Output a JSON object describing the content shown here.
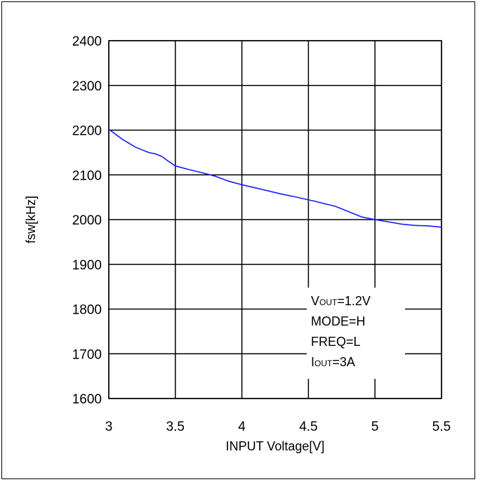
{
  "chart_data": {
    "type": "line",
    "xlabel": "INPUT Voltage[V]",
    "ylabel": "fsw[kHz]",
    "xlim": [
      3,
      5.5
    ],
    "ylim": [
      1600,
      2400
    ],
    "xticks": [
      3,
      3.5,
      4,
      4.5,
      5,
      5.5
    ],
    "xtick_labels": [
      "3",
      "3.5",
      "4",
      "4.5",
      "5",
      "5.5"
    ],
    "yticks": [
      1600,
      1700,
      1800,
      1900,
      2000,
      2100,
      2200,
      2300,
      2400
    ],
    "ytick_labels": [
      "1600",
      "1700",
      "1800",
      "1900",
      "2000",
      "2100",
      "2200",
      "2300",
      "2400"
    ],
    "grid": true,
    "legend": "none",
    "line_color": "#1a1aff",
    "series": [
      {
        "x": [
          3.0,
          3.1,
          3.2,
          3.3,
          3.35,
          3.4,
          3.45,
          3.5,
          3.6,
          3.7,
          3.8,
          3.9,
          4.0,
          4.1,
          4.2,
          4.3,
          4.4,
          4.5,
          4.55,
          4.6,
          4.7,
          4.8,
          4.9,
          5.0,
          5.1,
          5.2,
          5.3,
          5.4,
          5.5
        ],
        "y": [
          2202,
          2180,
          2162,
          2150,
          2147,
          2141,
          2130,
          2120,
          2112,
          2105,
          2097,
          2086,
          2078,
          2071,
          2064,
          2057,
          2051,
          2044,
          2041,
          2037,
          2030,
          2018,
          2006,
          2000,
          1995,
          1990,
          1987,
          1986,
          1983
        ]
      }
    ],
    "annotation": {
      "lines": [
        {
          "main": "V",
          "sub": "OUT",
          "rest": "=1.2V"
        },
        {
          "main": "MODE=H",
          "sub": "",
          "rest": ""
        },
        {
          "main": "FREQ=L",
          "sub": "",
          "rest": ""
        },
        {
          "main": "I",
          "sub": "OUT",
          "rest": "=3A"
        }
      ]
    }
  }
}
